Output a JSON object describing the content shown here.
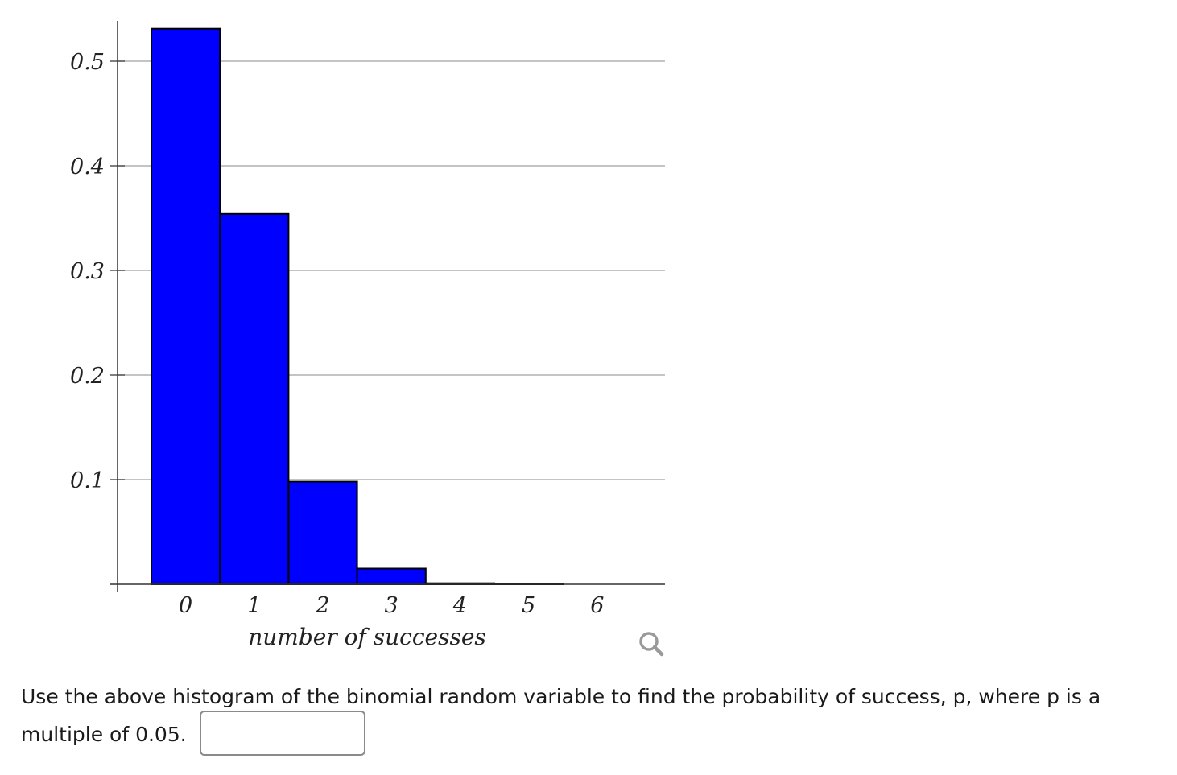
{
  "chart_data": {
    "type": "bar",
    "categories": [
      "0",
      "1",
      "2",
      "3",
      "4",
      "5",
      "6"
    ],
    "values": [
      0.531,
      0.354,
      0.098,
      0.015,
      0.001,
      0.0001,
      0.0
    ],
    "xlabel": "number of successes",
    "ylabel": "",
    "ylim": [
      0,
      0.55
    ],
    "yticks": [
      0.1,
      0.2,
      0.3,
      0.4,
      0.5
    ],
    "ytick_labels": [
      "0.1",
      "0.2",
      "0.3",
      "0.4",
      "0.5"
    ],
    "grid": true,
    "colors": {
      "bar_fill": "#0000ff",
      "bar_edge": "#000000",
      "grid": "#a0a0a0",
      "axis": "#333333"
    }
  },
  "question": {
    "text": "Use the above histogram of the binomial random variable to find the probability of success, p, where p is a multiple of 0.05.",
    "answer_value": "",
    "answer_placeholder": ""
  },
  "zoom": {
    "icon": "magnifier-icon"
  }
}
